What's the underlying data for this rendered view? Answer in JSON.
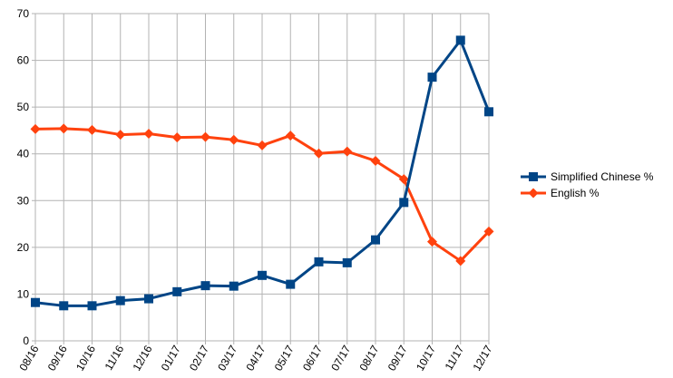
{
  "chart_data": {
    "type": "line",
    "title": "",
    "xlabel": "",
    "ylabel": "",
    "categories": [
      "08/16",
      "09/16",
      "10/16",
      "11/16",
      "12/16",
      "01/17",
      "02/17",
      "03/17",
      "04/17",
      "05/17",
      "06/17",
      "07/17",
      "08/17",
      "09/17",
      "10/17",
      "11/17",
      "12/17"
    ],
    "ylim": [
      0,
      70
    ],
    "yticks": [
      0,
      10,
      20,
      30,
      40,
      50,
      60,
      70
    ],
    "grid": true,
    "legend_position": "right",
    "series": [
      {
        "name": "Simplified Chinese %",
        "color": "#004586",
        "marker": "square",
        "values": [
          8.2,
          7.5,
          7.5,
          8.6,
          9.0,
          10.5,
          11.8,
          11.7,
          14.0,
          12.1,
          16.9,
          16.7,
          21.6,
          29.6,
          56.4,
          64.3,
          49.0
        ]
      },
      {
        "name": "English %",
        "color": "#ff420e",
        "marker": "diamond",
        "values": [
          45.3,
          45.4,
          45.1,
          44.1,
          44.3,
          43.5,
          43.6,
          43.0,
          41.8,
          43.9,
          40.1,
          40.5,
          38.5,
          34.6,
          21.2,
          17.1,
          23.4
        ]
      }
    ]
  }
}
